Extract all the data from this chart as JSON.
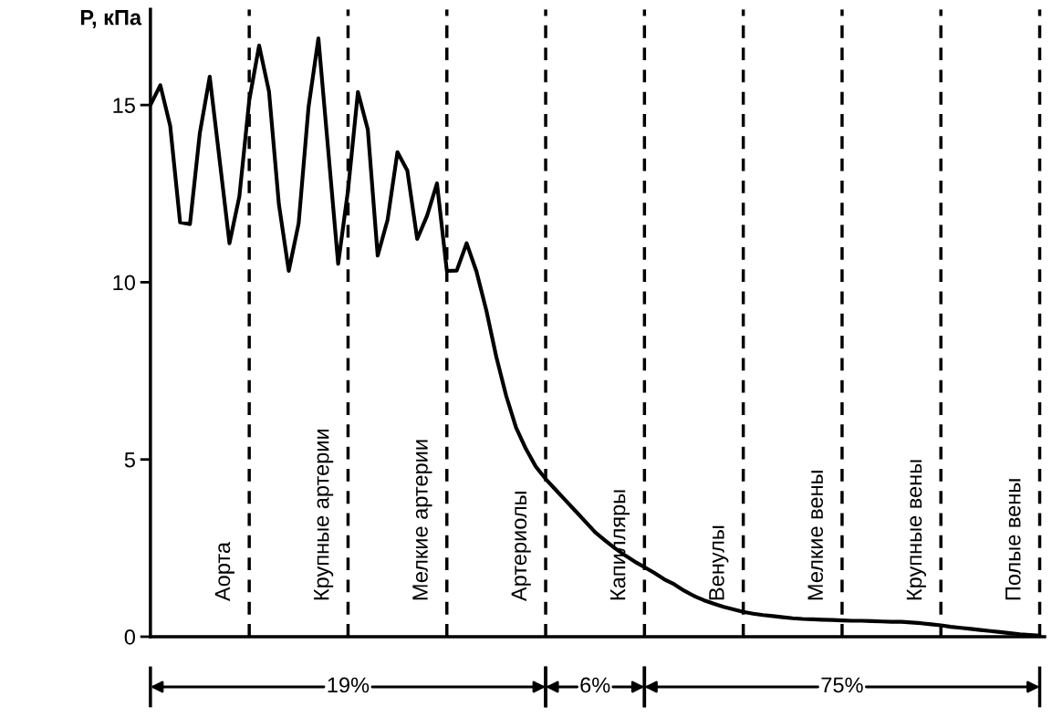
{
  "chart_data": {
    "type": "line",
    "ylabel": "P, кПа",
    "categories": [
      null,
      null,
      null,
      null,
      null,
      null,
      null,
      null,
      null,
      null,
      null,
      null,
      null,
      null,
      null,
      null,
      null,
      null,
      null,
      null,
      null,
      null,
      null,
      null,
      null,
      null,
      null,
      null,
      null,
      null,
      null,
      null,
      null,
      null,
      null,
      null,
      null,
      null,
      null,
      null,
      null,
      null,
      null,
      null,
      null,
      null,
      null,
      null,
      null,
      null,
      null,
      null,
      null,
      null,
      null,
      null,
      null,
      null,
      null,
      null,
      null,
      null,
      null,
      null,
      null,
      null,
      null,
      null,
      null,
      null,
      null,
      null,
      null,
      null,
      null,
      null,
      null,
      null,
      null,
      null,
      null,
      null,
      null,
      null,
      null,
      null,
      null,
      null,
      null,
      null,
      null
    ],
    "series": [
      {
        "color": "#000000",
        "values": [
          15.0,
          15.56,
          14.41,
          11.69,
          11.64,
          14.21,
          15.8,
          13.45,
          11.1,
          12.42,
          15.13,
          16.68,
          15.38,
          12.2,
          10.32,
          11.66,
          14.94,
          16.88,
          13.7,
          10.52,
          12.6,
          15.37,
          14.31,
          10.75,
          11.76,
          13.67,
          13.15,
          11.22,
          11.88,
          12.79,
          10.32,
          10.33,
          11.1,
          10.3,
          9.2,
          7.9,
          6.8,
          5.9,
          5.3,
          4.8,
          4.45,
          4.15,
          3.85,
          3.55,
          3.25,
          2.95,
          2.72,
          2.5,
          2.3,
          2.12,
          1.96,
          1.8,
          1.62,
          1.48,
          1.3,
          1.15,
          1.03,
          0.93,
          0.84,
          0.77,
          0.7,
          0.65,
          0.61,
          0.58,
          0.55,
          0.52,
          0.5,
          0.49,
          0.48,
          0.47,
          0.46,
          0.45,
          0.45,
          0.44,
          0.43,
          0.42,
          0.42,
          0.4,
          0.38,
          0.35,
          0.32,
          0.28,
          0.25,
          0.22,
          0.19,
          0.16,
          0.13,
          0.1,
          0.07,
          0.05,
          0.03
        ]
      }
    ],
    "ylim": [
      0,
      17.7
    ],
    "yticks": [
      0,
      5,
      10,
      15
    ],
    "tick_labels": "y",
    "legend": false,
    "marker": "none",
    "line_style": "solid",
    "annotations": [
      "Аорта",
      "Крупные артерии",
      "Мелкие артерии",
      "Артериолы",
      "Капилляры",
      "Венулы",
      "Мелкие вены",
      "Крупные вены",
      "Полые вены",
      "19%",
      "6%",
      "75%"
    ],
    "grid": "x"
  }
}
